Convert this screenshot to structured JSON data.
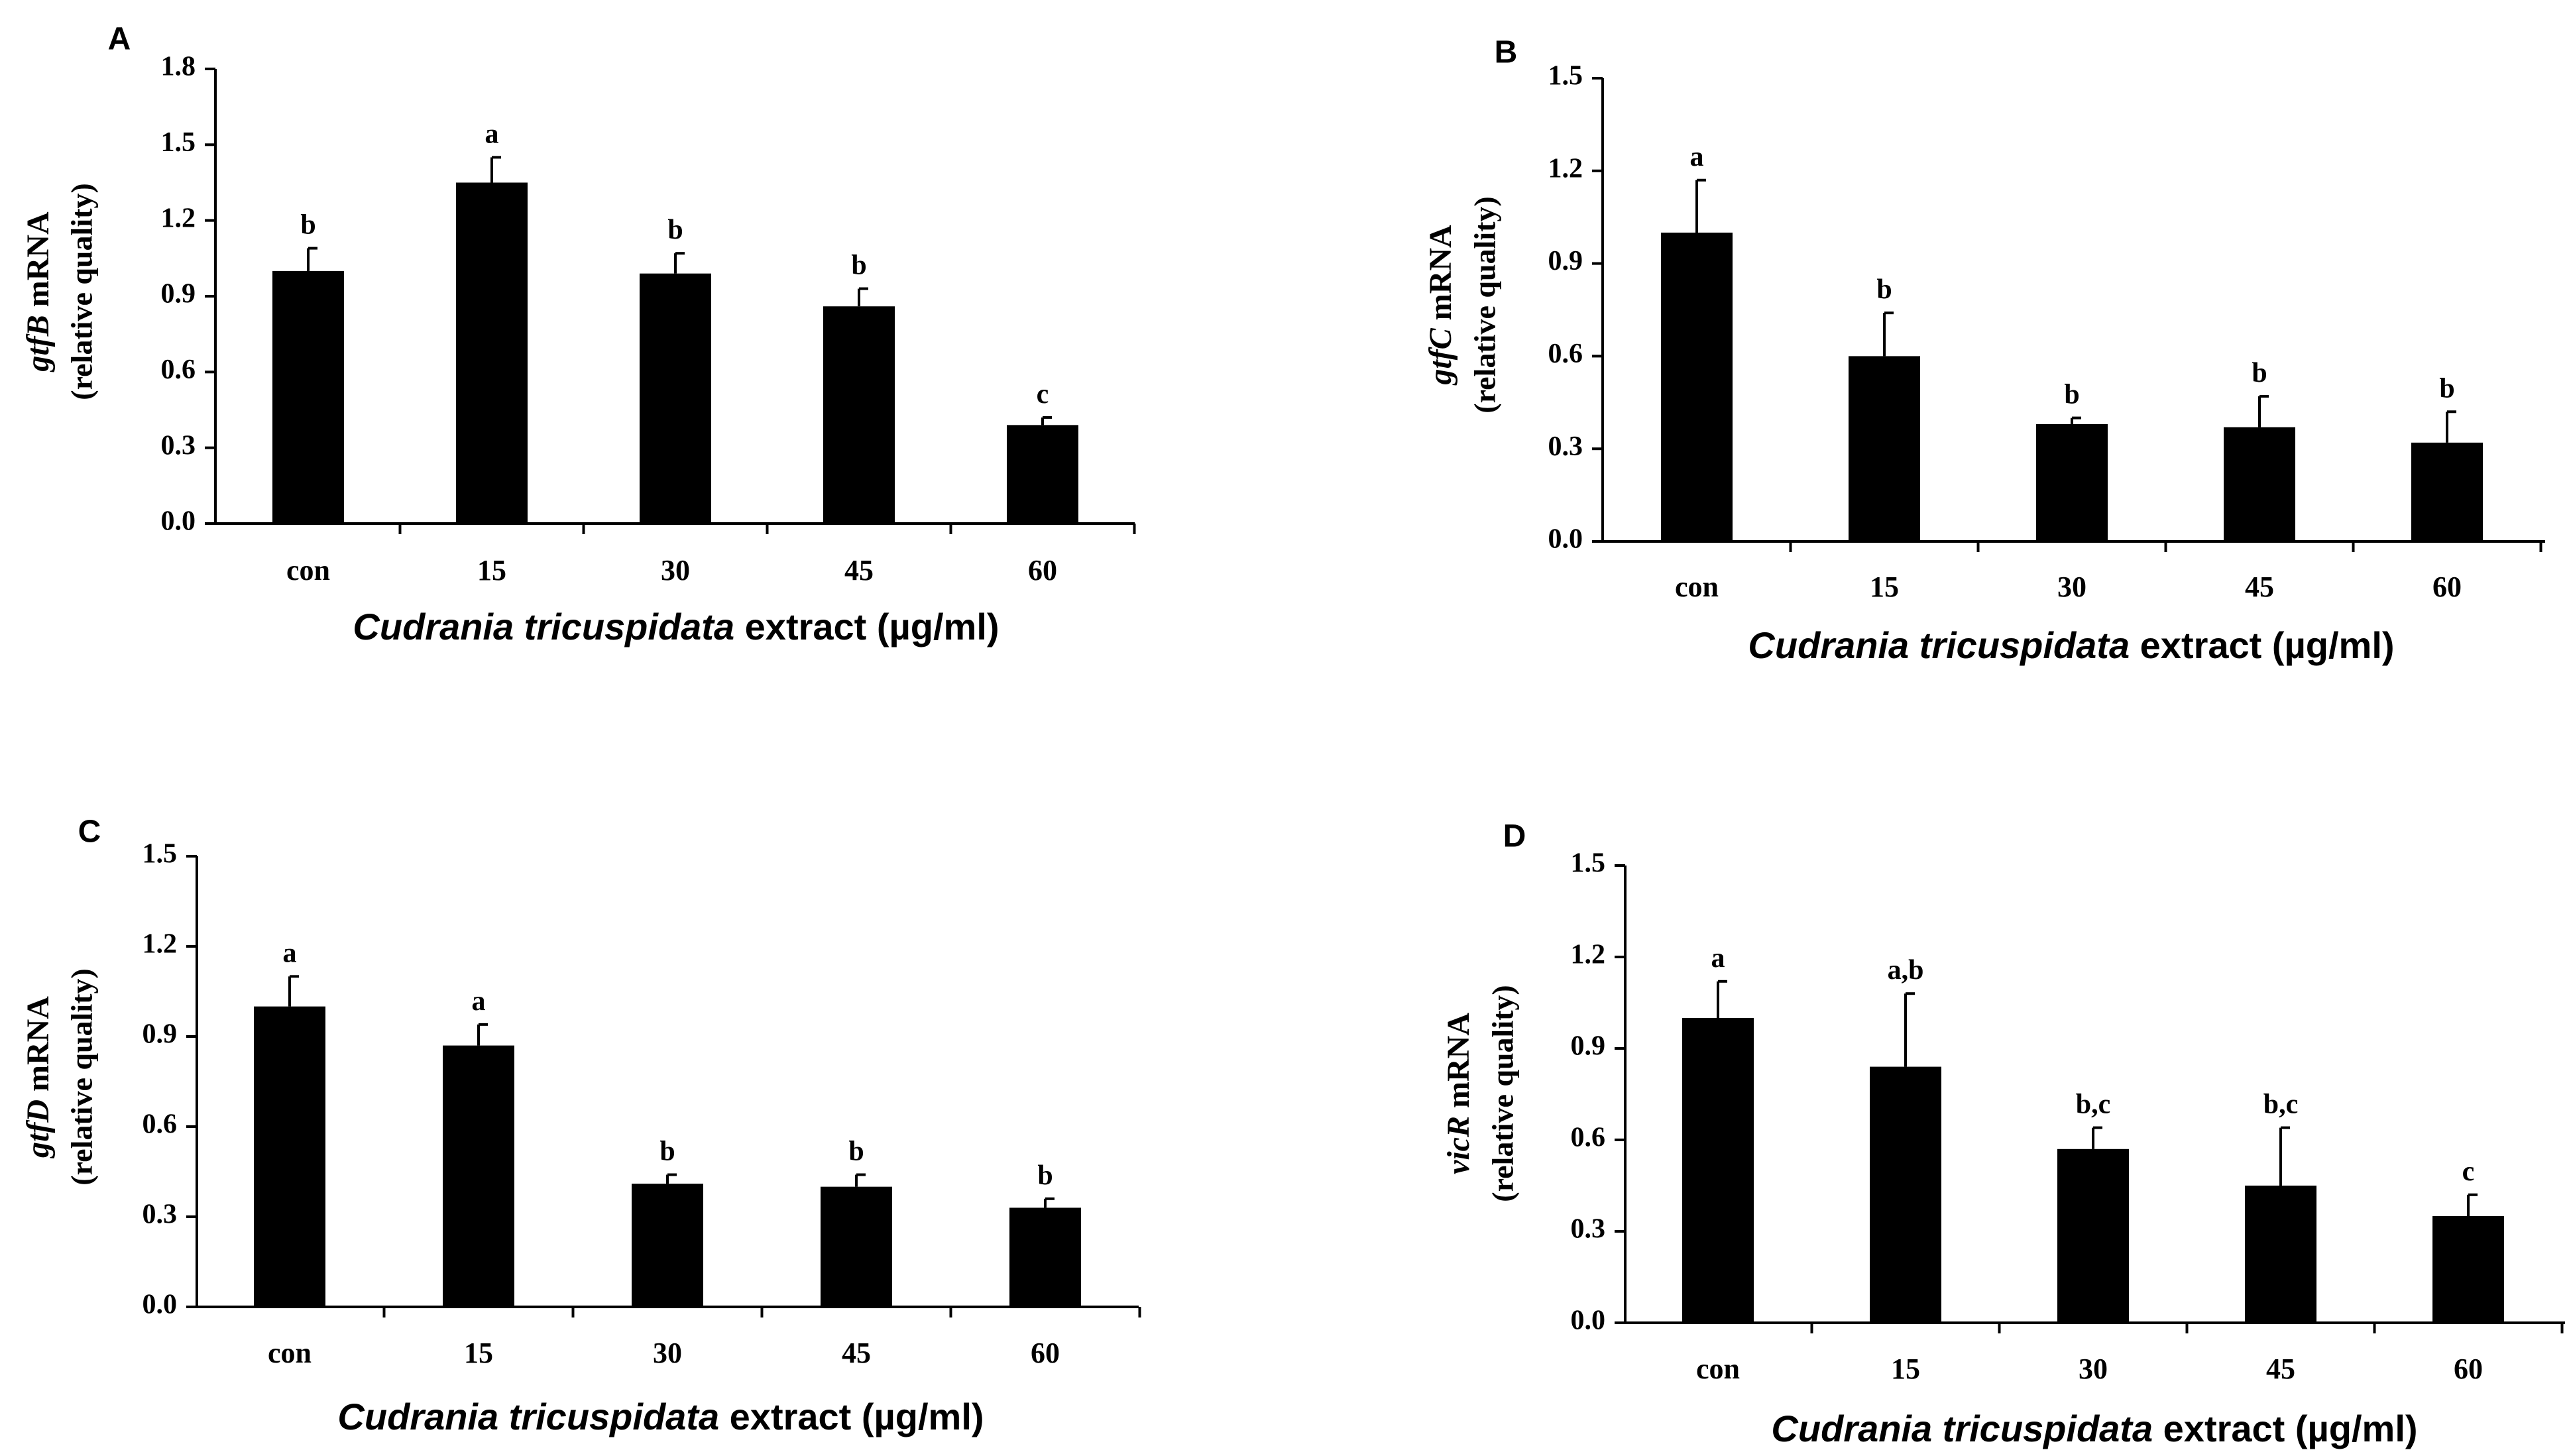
{
  "chart_data": [
    {
      "type": "bar",
      "panel": "A",
      "categories": [
        "con",
        "15",
        "30",
        "45",
        "60"
      ],
      "values": [
        1.0,
        1.35,
        0.99,
        0.86,
        0.39
      ],
      "errors": [
        0.09,
        0.1,
        0.08,
        0.07,
        0.03
      ],
      "significance": [
        "b",
        "a",
        "b",
        "b",
        "c"
      ],
      "ylabel_gene": "gtfB",
      "ylabel_suffix": " mRNA",
      "ylabel_line2": "(relative quality)",
      "xlabel_species": "Cudrania tricuspidata",
      "xlabel_suffix": " extract (µg/ml)",
      "ylim": [
        0,
        1.8
      ],
      "yticks": [
        "0.0",
        "0.3",
        "0.6",
        "0.9",
        "1.2",
        "1.5",
        "1.8"
      ]
    },
    {
      "type": "bar",
      "panel": "B",
      "categories": [
        "con",
        "15",
        "30",
        "45",
        "60"
      ],
      "values": [
        1.0,
        0.6,
        0.38,
        0.37,
        0.32
      ],
      "errors": [
        0.17,
        0.14,
        0.02,
        0.1,
        0.1
      ],
      "significance": [
        "a",
        "b",
        "b",
        "b",
        "b"
      ],
      "ylabel_gene": "gtfC",
      "ylabel_suffix": " mRNA",
      "ylabel_line2": "(relative quality)",
      "xlabel_species": "Cudrania tricuspidata",
      "xlabel_suffix": " extract (µg/ml)",
      "ylim": [
        0,
        1.5
      ],
      "yticks": [
        "0.0",
        "0.3",
        "0.6",
        "0.9",
        "1.2",
        "1.5"
      ]
    },
    {
      "type": "bar",
      "panel": "C",
      "categories": [
        "con",
        "15",
        "30",
        "45",
        "60"
      ],
      "values": [
        1.0,
        0.87,
        0.41,
        0.4,
        0.33
      ],
      "errors": [
        0.1,
        0.07,
        0.03,
        0.04,
        0.03
      ],
      "significance": [
        "a",
        "a",
        "b",
        "b",
        "b"
      ],
      "ylabel_gene": "gtfD",
      "ylabel_suffix": " mRNA",
      "ylabel_line2": "(relative quality)",
      "xlabel_species": "Cudrania tricuspidata",
      "xlabel_suffix": " extract (µg/ml)",
      "ylim": [
        0,
        1.5
      ],
      "yticks": [
        "0.0",
        "0.3",
        "0.6",
        "0.9",
        "1.2",
        "1.5"
      ]
    },
    {
      "type": "bar",
      "panel": "D",
      "categories": [
        "con",
        "15",
        "30",
        "45",
        "60"
      ],
      "values": [
        1.0,
        0.84,
        0.57,
        0.45,
        0.35
      ],
      "errors": [
        0.12,
        0.24,
        0.07,
        0.19,
        0.07
      ],
      "significance": [
        "a",
        "a,b",
        "b,c",
        "b,c",
        "c"
      ],
      "ylabel_gene": "vicR",
      "ylabel_suffix": " mRNA",
      "ylabel_line2": "(relative quality)",
      "xlabel_species": "Cudrania tricuspidata",
      "xlabel_suffix": " extract (µg/ml)",
      "ylim": [
        0,
        1.5
      ],
      "yticks": [
        "0.0",
        "0.3",
        "0.6",
        "0.9",
        "1.2",
        "1.5"
      ]
    }
  ],
  "colors": {
    "bar": "#000000",
    "axis": "#000000",
    "background": "#ffffff"
  }
}
